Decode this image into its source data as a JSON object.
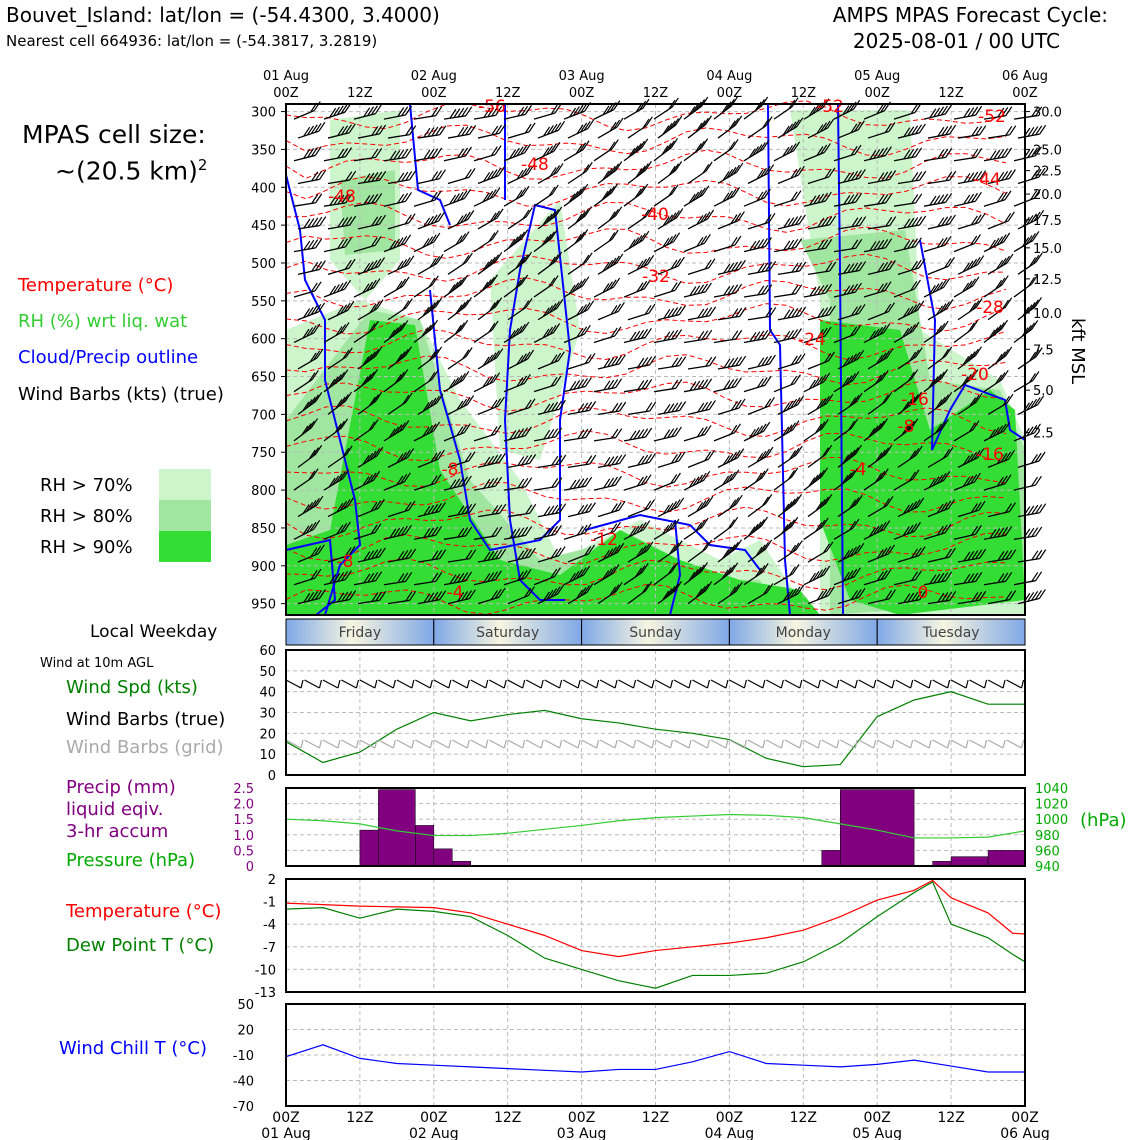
{
  "header": {
    "location_line": "Bouvet_Island: lat/lon = (-54.4300, 3.4000)",
    "nearest_cell_line": "Nearest cell 664936: lat/lon = (-54.3817, 3.2819)",
    "forecast_title": "AMPS MPAS Forecast Cycle:",
    "forecast_cycle": "2025-08-01 / 00 UTC"
  },
  "cell_size": {
    "line1": "MPAS cell size:",
    "line2": "~(20.5 km)",
    "sup": "2"
  },
  "legend": {
    "temperature": "Temperature (°C)",
    "rh": "RH (%) wrt liq. wat",
    "cloud": "Cloud/Precip outline",
    "wind": "Wind Barbs (kts) (true)",
    "rh70": "RH > 70%",
    "rh80": "RH > 80%",
    "rh90": "RH > 90%",
    "colors": {
      "temp": "#ff0000",
      "rh": "#33cc33",
      "cloud": "#0000ff",
      "rh70": "#ccf5cc",
      "rh80": "#a0e6a0",
      "rh90": "#33dd33"
    }
  },
  "time_axis": {
    "top_dates": [
      "01 Aug",
      "",
      "02 Aug",
      "",
      "03 Aug",
      "",
      "04 Aug",
      "",
      "05 Aug",
      "",
      "06 Aug"
    ],
    "hours": [
      "00Z",
      "12Z",
      "00Z",
      "12Z",
      "00Z",
      "12Z",
      "00Z",
      "12Z",
      "00Z",
      "12Z",
      "00Z"
    ],
    "bottom_dates": [
      "01 Aug",
      "",
      "02 Aug",
      "",
      "03 Aug",
      "",
      "04 Aug",
      "",
      "05 Aug",
      "",
      "06 Aug"
    ]
  },
  "weekday": {
    "label": "Local Weekday",
    "days": [
      "Friday",
      "Saturday",
      "Sunday",
      "Monday",
      "Tuesday"
    ]
  },
  "chart_data": [
    {
      "type": "heatmap",
      "name": "Time-height cross section",
      "ylabel_right": "kft MSL",
      "pressure_ticks": [
        300,
        350,
        400,
        450,
        500,
        550,
        600,
        650,
        700,
        750,
        800,
        850,
        900,
        950
      ],
      "kft_ticks": [
        "30.0",
        "25.0",
        "22.5",
        "20.0",
        "17.5",
        "15.0",
        "12.5",
        "10.0",
        "7.5",
        "5.0",
        "2.5"
      ],
      "kft_pressures": [
        300,
        350,
        378,
        409,
        443,
        480,
        521,
        566,
        614,
        668,
        724
      ],
      "temperature_labels": [
        "-56",
        "-52",
        "-52",
        "-48",
        "-48",
        "-44",
        "-40",
        "-32",
        "-28",
        "-24",
        "-20",
        "-16",
        "-16",
        "-12",
        "-8",
        "-8",
        "-8",
        "-4",
        "-4",
        "0"
      ],
      "wind_barb_rows": [
        310,
        335,
        365,
        395,
        425,
        455,
        485,
        515,
        545,
        575,
        605,
        640,
        670,
        700,
        735,
        770,
        800,
        835,
        865,
        895,
        925,
        950
      ]
    },
    {
      "type": "line",
      "name": "Wind at 10m AGL",
      "label": "Wind at 10m AGL",
      "series_labels": {
        "speed": "Wind Spd (kts)",
        "true": "Wind Barbs (true)",
        "grid": "Wind Barbs (grid)"
      },
      "y_ticks": [
        0,
        10,
        20,
        30,
        40,
        50,
        60
      ],
      "ylim": [
        0,
        60
      ],
      "x_hours": [
        0,
        6,
        12,
        18,
        24,
        30,
        36,
        42,
        48,
        54,
        60,
        66,
        72,
        78,
        84,
        90,
        96,
        102,
        108,
        114,
        120
      ],
      "values": [
        16,
        6,
        11,
        22,
        30,
        26,
        29,
        31,
        27,
        25,
        22,
        20,
        17,
        8,
        4,
        5,
        28,
        36,
        40,
        34,
        34
      ]
    },
    {
      "type": "bar",
      "name": "Precip and pressure",
      "labels": {
        "precip": "Precip (mm)",
        "liquid": "liquid eqiv.",
        "accum": "3-hr accum",
        "pressure": "Pressure (hPa)",
        "unit": "(hPa)"
      },
      "precip_ticks": [
        "0",
        "0.5",
        "1.0",
        "1.5",
        "2.0",
        "2.5"
      ],
      "precip_ylim": [
        0,
        2.5
      ],
      "pressure_ticks": [
        "940",
        "960",
        "980",
        "1000",
        "1020",
        "1040"
      ],
      "pressure_ylim": [
        940,
        1040
      ],
      "bars": [
        {
          "start": 12,
          "end": 15,
          "value": 1.15
        },
        {
          "start": 15,
          "end": 21,
          "value": 2.45
        },
        {
          "start": 21,
          "end": 24,
          "value": 1.3
        },
        {
          "start": 24,
          "end": 27,
          "value": 0.55
        },
        {
          "start": 27,
          "end": 30,
          "value": 0.15
        },
        {
          "start": 87,
          "end": 90,
          "value": 0.5
        },
        {
          "start": 90,
          "end": 102,
          "value": 2.45
        },
        {
          "start": 105,
          "end": 108,
          "value": 0.15
        },
        {
          "start": 108,
          "end": 114,
          "value": 0.3
        },
        {
          "start": 114,
          "end": 120,
          "value": 0.5
        }
      ],
      "pressure_x": [
        0,
        6,
        12,
        18,
        24,
        30,
        36,
        42,
        48,
        54,
        60,
        66,
        72,
        78,
        84,
        90,
        96,
        102,
        108,
        114,
        120
      ],
      "pressure_values": [
        1000,
        998,
        994,
        985,
        979,
        979,
        982,
        987,
        992,
        998,
        1002,
        1004,
        1006,
        1005,
        1002,
        994,
        986,
        976,
        976,
        977,
        985
      ]
    },
    {
      "type": "line",
      "name": "Temperature and dew point",
      "labels": {
        "temp": "Temperature (°C)",
        "dew": "Dew Point T (°C)"
      },
      "y_ticks": [
        2,
        -1,
        -4,
        -7,
        -10,
        -13
      ],
      "ylim": [
        -13,
        2
      ],
      "x_hours": [
        0,
        6,
        12,
        18,
        24,
        30,
        36,
        42,
        48,
        54,
        60,
        66,
        72,
        78,
        84,
        90,
        96,
        102,
        105,
        108,
        114,
        118,
        120
      ],
      "temperature": [
        -1.2,
        -1.4,
        -1.6,
        -1.7,
        -1.8,
        -2.5,
        -4.0,
        -5.5,
        -7.5,
        -8.3,
        -7.5,
        -7.0,
        -6.5,
        -5.8,
        -4.8,
        -3.0,
        -0.8,
        0.5,
        1.8,
        -0.5,
        -2.5,
        -5.2,
        -5.3
      ],
      "dewpoint": [
        -2.0,
        -1.8,
        -3.2,
        -2.0,
        -2.3,
        -3.0,
        -5.5,
        -8.5,
        -10.0,
        -11.5,
        -12.5,
        -10.8,
        -10.8,
        -10.5,
        -9.0,
        -6.5,
        -3.0,
        0.2,
        1.6,
        -4.0,
        -5.8,
        -8.0,
        -9.0
      ]
    },
    {
      "type": "line",
      "name": "Wind chill",
      "labels": {
        "wind_chill": "Wind Chill T (°C)"
      },
      "y_ticks": [
        50,
        20,
        -10,
        -40,
        -70
      ],
      "ylim": [
        -70,
        50
      ],
      "x_hours": [
        0,
        6,
        12,
        18,
        24,
        30,
        36,
        42,
        48,
        54,
        60,
        66,
        72,
        78,
        84,
        90,
        96,
        102,
        108,
        114,
        120
      ],
      "values": [
        -12,
        2,
        -14,
        -20,
        -22,
        -24,
        -26,
        -28,
        -30,
        -27,
        -27,
        -18,
        -6,
        -20,
        -22,
        -24,
        -21,
        -16,
        -23,
        -30,
        -30
      ]
    }
  ]
}
